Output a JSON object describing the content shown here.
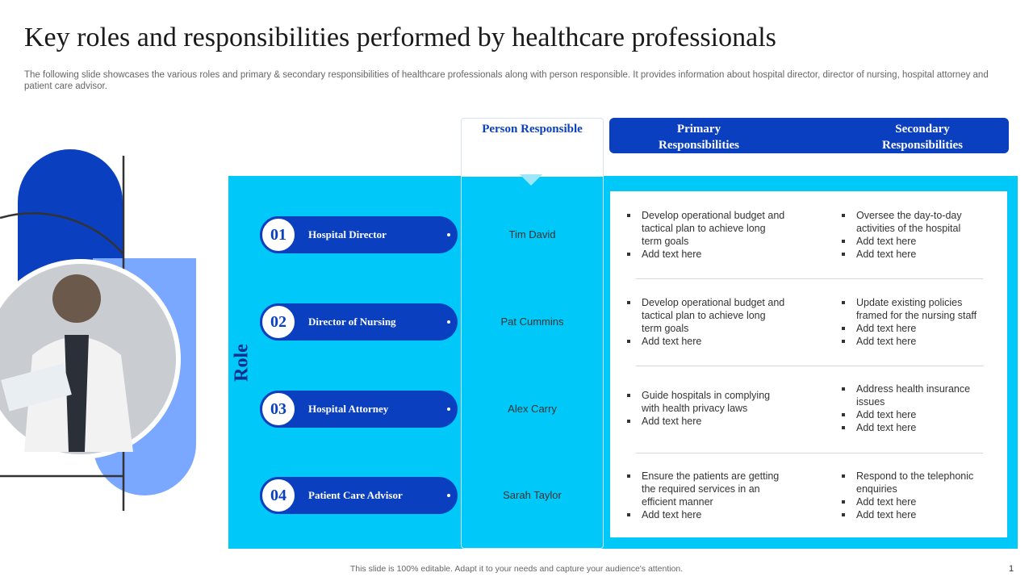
{
  "header": {
    "title": "Key roles and responsibilities performed by healthcare professionals",
    "subtitle": "The following slide showcases the various roles and primary & secondary responsibilities of healthcare professionals along with person responsible. It provides information about hospital director, director of nursing, hospital attorney and patient care advisor."
  },
  "columns": {
    "person": "Person Responsible",
    "primary": "Primary Responsibilities",
    "secondary": "Secondary Responsibilities",
    "role": "Role"
  },
  "rows": [
    {
      "number": "01",
      "role": "Hospital Director",
      "person": "Tim David",
      "primary": [
        "Develop operational budget and tactical plan to achieve long term goals",
        "Add text here"
      ],
      "secondary": [
        "Oversee the day-to-day activities of the hospital",
        "Add text here",
        "Add text here"
      ]
    },
    {
      "number": "02",
      "role": "Director of Nursing",
      "person": "Pat Cummins",
      "primary": [
        "Develop operational budget and tactical plan to achieve long term goals",
        "Add text here"
      ],
      "secondary": [
        "Update existing policies framed for the nursing staff",
        "Add text here",
        "Add text here"
      ]
    },
    {
      "number": "03",
      "role": "Hospital Attorney",
      "person": "Alex Carry",
      "primary": [
        "Guide hospitals in complying with health privacy laws",
        "Add text here"
      ],
      "secondary": [
        "Address health insurance issues",
        "Add text here",
        "Add text here"
      ]
    },
    {
      "number": "04",
      "role": "Patient Care Advisor",
      "person": "Sarah Taylor",
      "primary": [
        "Ensure the patients are getting the required services in an efficient manner",
        "Add text here"
      ],
      "secondary": [
        "Respond to the telephonic enquiries",
        "Add text here",
        "Add text here"
      ]
    }
  ],
  "footer": {
    "note": "This slide is 100% editable. Adapt it to your needs and capture your audience's attention.",
    "page": "1"
  }
}
